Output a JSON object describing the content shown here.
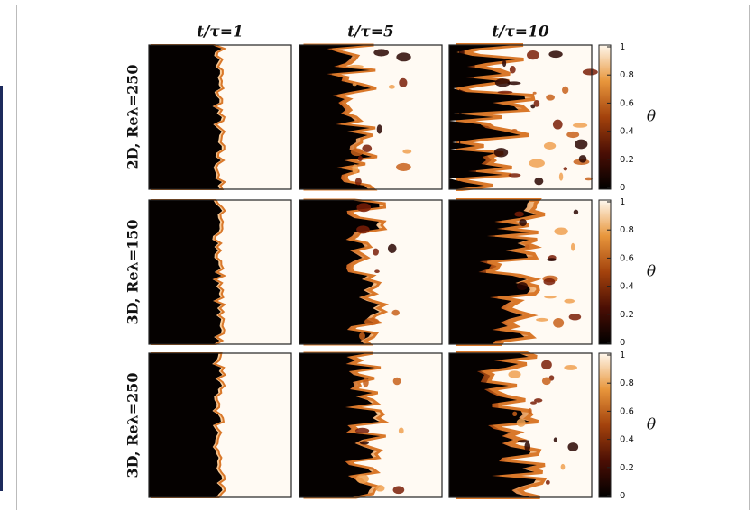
{
  "figure": {
    "columns": [
      "t/τ=1",
      "t/τ=5",
      "t/τ=10"
    ],
    "rows": [
      {
        "label": "2D, Reλ=250",
        "colorbar": {
          "ticks": [
            1,
            0.8,
            0.6,
            0.4,
            0.2,
            0
          ],
          "label": "θ"
        }
      },
      {
        "label": "3D, Reλ=150",
        "colorbar": {
          "ticks": [
            1,
            0.8,
            0.6,
            0.4,
            0.2,
            0
          ],
          "label": "θ"
        }
      },
      {
        "label": "3D, Reλ=250",
        "colorbar": {
          "ticks": [
            1,
            0.8,
            0.6,
            0.4,
            0.2,
            0
          ],
          "label": "θ"
        }
      }
    ]
  }
}
